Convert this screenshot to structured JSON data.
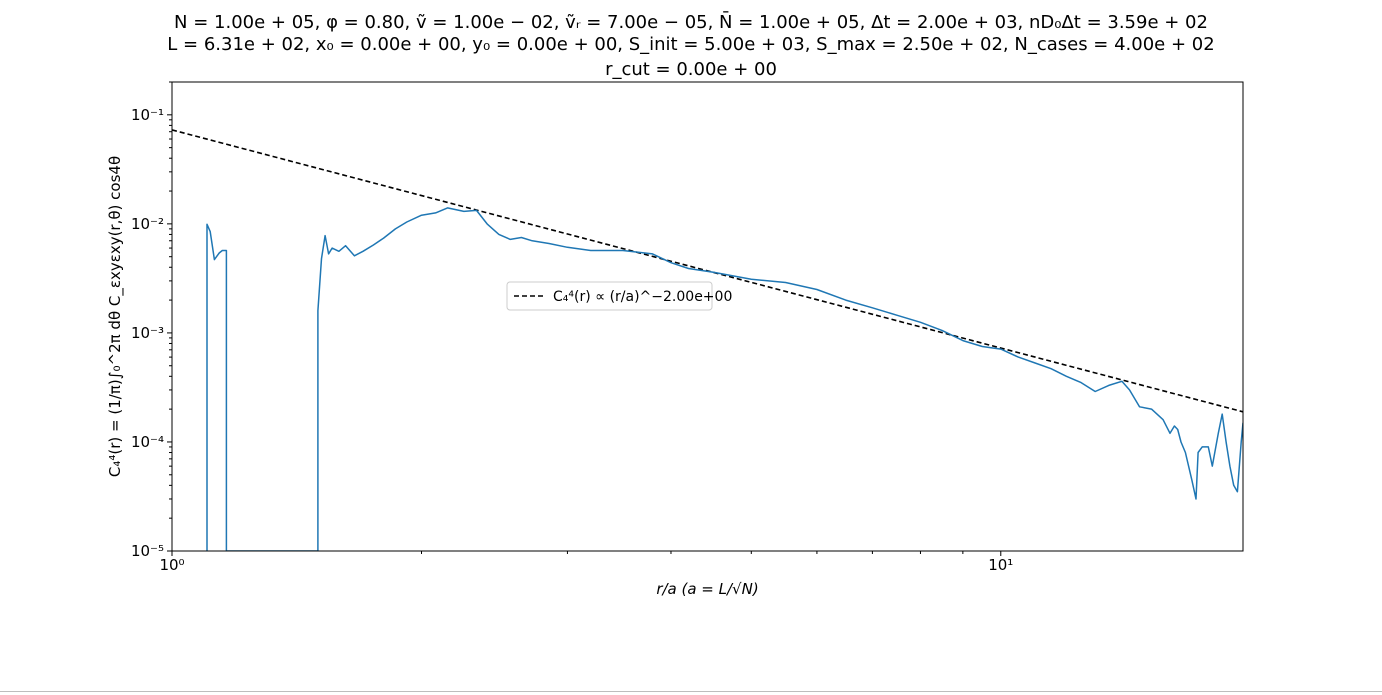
{
  "titles": {
    "line1": "N = 1.00e + 05, φ = 0.80, ṽ = 1.00e − 02, ṽᵣ = 7.00e − 05, N̄ = 1.00e + 05, Δt = 2.00e + 03, nD₀Δt = 3.59e + 02",
    "line2": "L = 6.31e + 02, x₀ = 0.00e + 00, y₀ = 0.00e + 00, S_init = 5.00e + 03, S_max = 2.50e + 02, N_cases = 4.00e + 02",
    "line3": "r_cut = 0.00e + 00"
  },
  "chart_data": {
    "type": "line",
    "xscale": "log",
    "yscale": "log",
    "xlim": [
      1.0,
      19.6
    ],
    "ylim": [
      1e-05,
      0.2
    ],
    "xlabel": "r/a (a = L/√N)",
    "ylabel": "C₄⁴(r) = (1/π)∫₀^2π dθ C_εxyεxy(r,θ) cos4θ",
    "x_ticks": [
      {
        "value": 1,
        "label": "10⁰"
      },
      {
        "value": 10,
        "label": "10¹"
      }
    ],
    "y_ticks": [
      {
        "value": 1e-05,
        "label": "10⁻⁵"
      },
      {
        "value": 0.0001,
        "label": "10⁻⁴"
      },
      {
        "value": 0.001,
        "label": "10⁻³"
      },
      {
        "value": 0.01,
        "label": "10⁻²"
      },
      {
        "value": 0.1,
        "label": "10⁻¹"
      }
    ],
    "legend": {
      "position": "center-left",
      "entries": [
        "C₄⁴(r) ∝ (r/a)^−2.00e+00"
      ]
    },
    "colors": {
      "data": "#1f77b4",
      "fit": "#000000"
    },
    "series": [
      {
        "style": "dashed",
        "x": [
          1.0,
          19.6
        ],
        "y": [
          0.0727,
          0.000189
        ]
      },
      {
        "style": "solid",
        "x": [
          1.102,
          1.102,
          1.112,
          1.125,
          1.14,
          1.15,
          1.163,
          1.163,
          1.5,
          1.5,
          1.515,
          1.53,
          1.545,
          1.56,
          1.59,
          1.62,
          1.66,
          1.7,
          1.75,
          1.8,
          1.86,
          1.92,
          2.0,
          2.08,
          2.15,
          2.25,
          2.33,
          2.4,
          2.48,
          2.56,
          2.64,
          2.72,
          2.85,
          3.0,
          3.2,
          3.5,
          3.8,
          4.0,
          4.2,
          4.5,
          5.0,
          5.5,
          6.0,
          6.5,
          7.0,
          7.5,
          8.0,
          8.5,
          9.0,
          9.5,
          10.0,
          10.5,
          11.0,
          11.5,
          12.0,
          12.5,
          13.0,
          13.5,
          14.0,
          14.3,
          14.7,
          15.2,
          15.7,
          16.0,
          16.2,
          16.35,
          16.5,
          16.7,
          17.0,
          17.2,
          17.3,
          17.5,
          17.8,
          18.0,
          18.3,
          18.5,
          18.7,
          18.9,
          19.1,
          19.3,
          19.5,
          19.6
        ],
        "y": [
          1e-05,
          0.0099,
          0.0085,
          0.0047,
          0.0054,
          0.0057,
          0.0057,
          1e-05,
          1e-05,
          0.0016,
          0.0048,
          0.0078,
          0.0053,
          0.006,
          0.0056,
          0.0063,
          0.0051,
          0.0056,
          0.0064,
          0.0074,
          0.009,
          0.0104,
          0.012,
          0.0126,
          0.014,
          0.013,
          0.0133,
          0.01,
          0.008,
          0.0072,
          0.0075,
          0.007,
          0.0066,
          0.0061,
          0.0057,
          0.0057,
          0.0053,
          0.0044,
          0.0039,
          0.0036,
          0.0031,
          0.0029,
          0.0025,
          0.002,
          0.0017,
          0.00145,
          0.00125,
          0.00105,
          0.00085,
          0.00075,
          0.00071,
          0.0006,
          0.00053,
          0.00047,
          0.0004,
          0.00035,
          0.00029,
          0.00033,
          0.00036,
          0.0003,
          0.00021,
          0.0002,
          0.00016,
          0.00012,
          0.00014,
          0.00013,
          0.0001,
          8e-05,
          4.5e-05,
          3e-05,
          8e-05,
          9e-05,
          9e-05,
          6e-05,
          0.00012,
          0.00018,
          0.0001,
          6e-05,
          4e-05,
          3.5e-05,
          0.0001,
          0.00015
        ]
      }
    ]
  }
}
